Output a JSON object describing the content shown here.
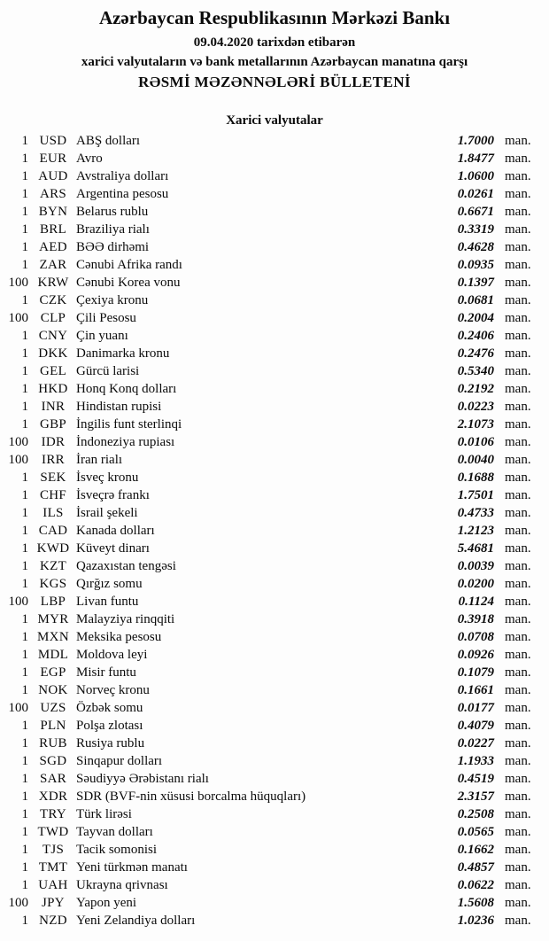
{
  "header": {
    "bank_name": "Azərbaycan Respublikasının Mərkəzi Bankı",
    "date_line": "09.04.2020 tarixdən etibarən",
    "subtitle_line": "xarici valyutaların və bank metallarının Azərbaycan manatına qarşı",
    "bulletin_title": "RƏSMİ MƏZƏNNƏLƏRİ BÜLLETENİ"
  },
  "section": {
    "title": "Xarici valyutalar"
  },
  "unit_suffix": "man.",
  "rates": [
    {
      "qty": "1",
      "code": "USD",
      "name": "ABŞ dolları",
      "rate": "1.7000"
    },
    {
      "qty": "1",
      "code": "EUR",
      "name": "Avro",
      "rate": "1.8477"
    },
    {
      "qty": "1",
      "code": "AUD",
      "name": "Avstraliya dolları",
      "rate": "1.0600"
    },
    {
      "qty": "1",
      "code": "ARS",
      "name": "Argentina pesosu",
      "rate": "0.0261"
    },
    {
      "qty": "1",
      "code": "BYN",
      "name": "Belarus rublu",
      "rate": "0.6671"
    },
    {
      "qty": "1",
      "code": "BRL",
      "name": "Braziliya rialı",
      "rate": "0.3319"
    },
    {
      "qty": "1",
      "code": "AED",
      "name": "BƏƏ dirhəmi",
      "rate": "0.4628"
    },
    {
      "qty": "1",
      "code": "ZAR",
      "name": "Cənubi Afrika randı",
      "rate": "0.0935"
    },
    {
      "qty": "100",
      "code": "KRW",
      "name": "Cənubi Korea vonu",
      "rate": "0.1397"
    },
    {
      "qty": "1",
      "code": "CZK",
      "name": "Çexiya kronu",
      "rate": "0.0681"
    },
    {
      "qty": "100",
      "code": "CLP",
      "name": "Çili Pesosu",
      "rate": "0.2004"
    },
    {
      "qty": "1",
      "code": "CNY",
      "name": "Çin yuanı",
      "rate": "0.2406"
    },
    {
      "qty": "1",
      "code": "DKK",
      "name": "Danimarka kronu",
      "rate": "0.2476"
    },
    {
      "qty": "1",
      "code": "GEL",
      "name": "Gürcü larisi",
      "rate": "0.5340"
    },
    {
      "qty": "1",
      "code": "HKD",
      "name": "Honq Konq dolları",
      "rate": "0.2192"
    },
    {
      "qty": "1",
      "code": "INR",
      "name": "Hindistan rupisi",
      "rate": "0.0223"
    },
    {
      "qty": "1",
      "code": "GBP",
      "name": "İngilis funt sterlinqi",
      "rate": "2.1073"
    },
    {
      "qty": "100",
      "code": "IDR",
      "name": "İndoneziya rupiası",
      "rate": "0.0106"
    },
    {
      "qty": "100",
      "code": "IRR",
      "name": "İran rialı",
      "rate": "0.0040"
    },
    {
      "qty": "1",
      "code": "SEK",
      "name": "İsveç kronu",
      "rate": "0.1688"
    },
    {
      "qty": "1",
      "code": "CHF",
      "name": "İsveçrə frankı",
      "rate": "1.7501"
    },
    {
      "qty": "1",
      "code": "ILS",
      "name": "İsrail şekeli",
      "rate": "0.4733"
    },
    {
      "qty": "1",
      "code": "CAD",
      "name": "Kanada dolları",
      "rate": "1.2123"
    },
    {
      "qty": "1",
      "code": "KWD",
      "name": "Küveyt dinarı",
      "rate": "5.4681"
    },
    {
      "qty": "1",
      "code": "KZT",
      "name": "Qazaxıstan tengəsi",
      "rate": "0.0039"
    },
    {
      "qty": "1",
      "code": "KGS",
      "name": "Qırğız somu",
      "rate": "0.0200"
    },
    {
      "qty": "100",
      "code": "LBP",
      "name": "Livan funtu",
      "rate": "0.1124"
    },
    {
      "qty": "1",
      "code": "MYR",
      "name": "Malayziya rinqqiti",
      "rate": "0.3918"
    },
    {
      "qty": "1",
      "code": "MXN",
      "name": "Meksika pesosu",
      "rate": "0.0708"
    },
    {
      "qty": "1",
      "code": "MDL",
      "name": "Moldova leyi",
      "rate": "0.0926"
    },
    {
      "qty": "1",
      "code": "EGP",
      "name": "Misir funtu",
      "rate": "0.1079"
    },
    {
      "qty": "1",
      "code": "NOK",
      "name": "Norveç kronu",
      "rate": "0.1661"
    },
    {
      "qty": "100",
      "code": "UZS",
      "name": "Özbək somu",
      "rate": "0.0177"
    },
    {
      "qty": "1",
      "code": "PLN",
      "name": "Polşa zlotası",
      "rate": "0.4079"
    },
    {
      "qty": "1",
      "code": "RUB",
      "name": "Rusiya rublu",
      "rate": "0.0227"
    },
    {
      "qty": "1",
      "code": "SGD",
      "name": "Sinqapur dolları",
      "rate": "1.1933"
    },
    {
      "qty": "1",
      "code": "SAR",
      "name": "Səudiyyə Ərəbistanı rialı",
      "rate": "0.4519"
    },
    {
      "qty": "1",
      "code": "XDR",
      "name": "SDR (BVF-nin xüsusi borcalma hüquqları)",
      "rate": "2.3157"
    },
    {
      "qty": "1",
      "code": "TRY",
      "name": "Türk lirəsi",
      "rate": "0.2508"
    },
    {
      "qty": "1",
      "code": "TWD",
      "name": "Tayvan dolları",
      "rate": "0.0565"
    },
    {
      "qty": "1",
      "code": "TJS",
      "name": "Tacik somonisi",
      "rate": "0.1662"
    },
    {
      "qty": "1",
      "code": "TMT",
      "name": "Yeni türkmən manatı",
      "rate": "0.4857"
    },
    {
      "qty": "1",
      "code": "UAH",
      "name": "Ukrayna qrivnası",
      "rate": "0.0622"
    },
    {
      "qty": "100",
      "code": "JPY",
      "name": "Yapon yeni",
      "rate": "1.5608"
    },
    {
      "qty": "1",
      "code": "NZD",
      "name": "Yeni Zelandiya dolları",
      "rate": "1.0236"
    }
  ]
}
